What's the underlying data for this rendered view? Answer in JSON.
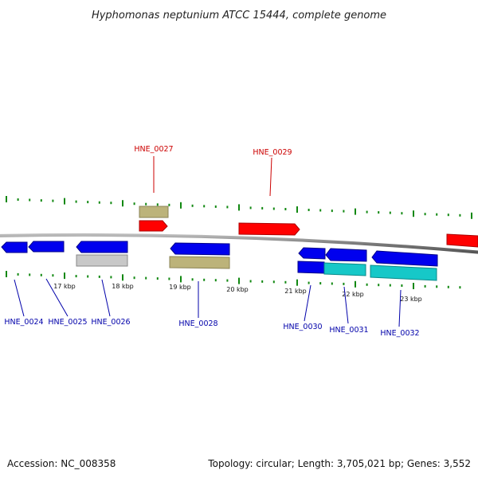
{
  "title": "Hyphomonas neptunium ATCC 15444, complete genome",
  "footer": {
    "accession": "Accession: NC_008358",
    "topology": "Topology: circular; Length: 3,705,021 bp; Genes: 3,552"
  },
  "colors": {
    "forward_gene": "#ff0000",
    "reverse_gene": "#0000ee",
    "olive_feature": "#bcb37a",
    "gray_feature": "#c8c8c8",
    "cyan_feature": "#16c8c8",
    "tick": "#118811",
    "backbone": "#808080",
    "label_red": "#cc0000",
    "label_blue": "#0000aa"
  },
  "kbp_ticks": [
    "17 kbp",
    "18 kbp",
    "19 kbp",
    "20 kbp",
    "21 kbp",
    "22 kbp",
    "23 kbp"
  ],
  "gene_labels_top": [
    "HNE_0027",
    "HNE_0029"
  ],
  "gene_labels_bottom": [
    "HNE_0024",
    "HNE_0025",
    "HNE_0026",
    "HNE_0028",
    "HNE_0030",
    "HNE_0031",
    "HNE_0032"
  ]
}
